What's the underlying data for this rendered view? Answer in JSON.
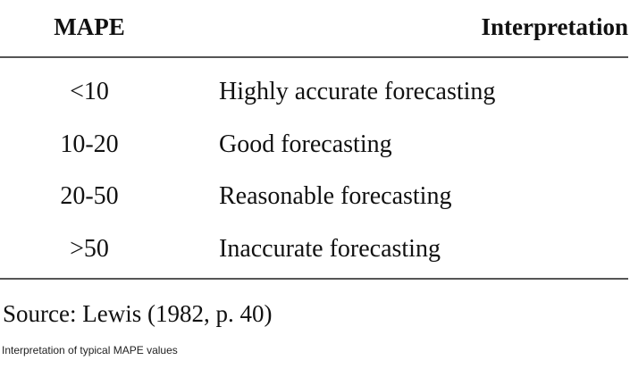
{
  "table": {
    "headers": {
      "mape": "MAPE",
      "interpretation": "Interpretation"
    },
    "rows": [
      {
        "mape": "<10",
        "interpretation": "Highly accurate forecasting"
      },
      {
        "mape": "10-20",
        "interpretation": "Good forecasting"
      },
      {
        "mape": "20-50",
        "interpretation": "Reasonable forecasting"
      },
      {
        "mape": ">50",
        "interpretation": "Inaccurate forecasting"
      }
    ]
  },
  "source": "Source: Lewis (1982, p. 40)",
  "caption": "Interpretation of typical MAPE values"
}
